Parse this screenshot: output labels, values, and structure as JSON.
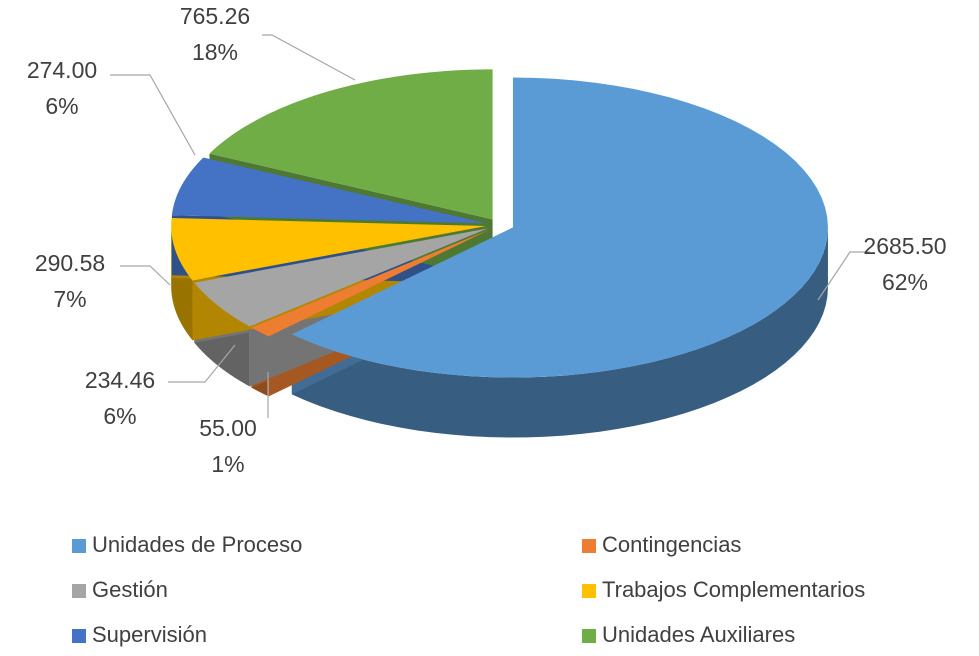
{
  "chart_data": {
    "type": "pie",
    "three_d": true,
    "categories": [
      "Unidades de Proceso",
      "Contingencias",
      "Gestión",
      "Trabajos Complementarios",
      "Supervisión",
      "Unidades Auxiliares"
    ],
    "values": [
      2685.5,
      55,
      234.46,
      290.58,
      274,
      765.26
    ],
    "value_labels": [
      "2685.50",
      "55.00",
      "234.46",
      "290.58",
      "274.00",
      "765.26"
    ],
    "percent_labels": [
      "62%",
      "1%",
      "6%",
      "7%",
      "6%",
      "18%"
    ],
    "colors": [
      "#5b9bd5",
      "#ed7d31",
      "#a5a5a5",
      "#ffc000",
      "#4472c4",
      "#70ad47"
    ],
    "legend": "bottom"
  }
}
